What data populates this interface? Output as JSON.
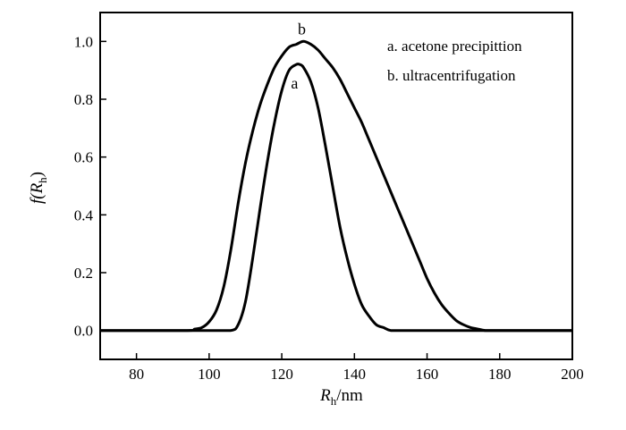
{
  "chart_data": {
    "type": "line",
    "title": "",
    "xlabel": {
      "main": "R",
      "sub": "h",
      "suffix": "/nm"
    },
    "ylabel": {
      "prefix": "f(",
      "main": "R",
      "sub": "h",
      "suffix": ")"
    },
    "xlim": [
      70,
      200
    ],
    "ylim": [
      -0.1,
      1.1
    ],
    "xticks": [
      80,
      100,
      120,
      140,
      160,
      180,
      200
    ],
    "xtick_labels": [
      "80",
      "100",
      "120",
      "140",
      "160",
      "180",
      "200"
    ],
    "yticks": [
      0.0,
      0.2,
      0.4,
      0.6,
      0.8,
      1.0
    ],
    "ytick_labels": [
      "0.0",
      "0.2",
      "0.4",
      "0.6",
      "0.8",
      "1.0"
    ],
    "grid": false,
    "legend_position": "top-right",
    "legend": [
      "a. acetone precipittion",
      "b. ultracentrifugation"
    ],
    "series": [
      {
        "label": "a",
        "x": [
          70,
          100,
          106,
          108,
          110,
          112,
          114,
          116,
          118,
          120,
          122,
          124,
          125,
          126,
          128,
          130,
          132,
          134,
          136,
          138,
          140,
          142,
          144,
          146,
          148,
          150,
          154,
          160,
          200
        ],
        "y": [
          0,
          0,
          0,
          0.02,
          0.1,
          0.25,
          0.42,
          0.58,
          0.72,
          0.83,
          0.9,
          0.92,
          0.92,
          0.91,
          0.86,
          0.77,
          0.64,
          0.5,
          0.36,
          0.25,
          0.16,
          0.09,
          0.05,
          0.02,
          0.01,
          0,
          0,
          0,
          0
        ]
      },
      {
        "label": "b",
        "x": [
          70,
          94,
          96,
          98,
          100,
          102,
          104,
          106,
          108,
          110,
          112,
          114,
          116,
          118,
          120,
          122,
          124,
          126,
          128,
          130,
          132,
          134,
          136,
          138,
          140,
          142,
          144,
          146,
          148,
          150,
          152,
          154,
          156,
          158,
          160,
          162,
          164,
          166,
          168,
          170,
          172,
          174,
          176,
          178,
          180,
          200
        ],
        "y": [
          0,
          0,
          0.005,
          0.01,
          0.03,
          0.07,
          0.15,
          0.28,
          0.44,
          0.58,
          0.69,
          0.78,
          0.85,
          0.91,
          0.95,
          0.98,
          0.99,
          1.0,
          0.99,
          0.97,
          0.94,
          0.91,
          0.87,
          0.82,
          0.77,
          0.72,
          0.66,
          0.6,
          0.54,
          0.48,
          0.42,
          0.36,
          0.3,
          0.24,
          0.18,
          0.13,
          0.09,
          0.06,
          0.035,
          0.02,
          0.01,
          0.005,
          0,
          0,
          0,
          0
        ]
      }
    ]
  }
}
